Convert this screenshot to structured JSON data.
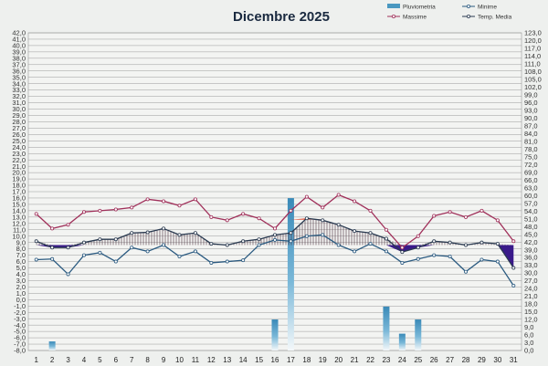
{
  "chart_data": {
    "type": "line",
    "title": "Dicembre 2025",
    "x": [
      "1",
      "2",
      "3",
      "4",
      "5",
      "6",
      "7",
      "8",
      "9",
      "10",
      "11",
      "12",
      "13",
      "14",
      "15",
      "16",
      "17",
      "18",
      "19",
      "20",
      "21",
      "22",
      "23",
      "24",
      "25",
      "26",
      "27",
      "28",
      "29",
      "30",
      "31"
    ],
    "y_left": {
      "ticks": [
        "42,0",
        "41,0",
        "40,0",
        "39,0",
        "38,0",
        "37,0",
        "36,0",
        "35,0",
        "34,0",
        "33,0",
        "32,0",
        "31,0",
        "30,0",
        "29,0",
        "28,0",
        "27,0",
        "26,0",
        "25,0",
        "24,0",
        "23,0",
        "22,0",
        "21,0",
        "20,0",
        "19,0",
        "18,0",
        "17,0",
        "16,0",
        "15,0",
        "14,0",
        "13,0",
        "12,0",
        "11,0",
        "10,0",
        "9,0",
        "8,0",
        "7,0",
        "6,0",
        "5,0",
        "4,0",
        "3,0",
        "2,0",
        "1,0",
        "0,0",
        "-1,0",
        "-2,0",
        "-3,0",
        "-4,0",
        "-5,0",
        "-6,0",
        "-7,0",
        "-8,0"
      ],
      "range": [
        -8,
        42
      ]
    },
    "y_right": {
      "ticks": [
        "123,0",
        "120,0",
        "117,0",
        "114,0",
        "111,0",
        "108,0",
        "105,0",
        "102,0",
        "99,0",
        "96,0",
        "93,0",
        "90,0",
        "87,0",
        "84,0",
        "81,0",
        "78,0",
        "75,0",
        "72,0",
        "69,0",
        "66,0",
        "63,0",
        "60,0",
        "57,0",
        "54,0",
        "51,0",
        "48,0",
        "45,0",
        "42,0",
        "39,0",
        "36,0",
        "33,0",
        "30,0",
        "27,0",
        "24,0",
        "21,0",
        "18,0",
        "15,0",
        "12,0",
        "9,0",
        "6,0",
        "3,0",
        "0,0"
      ],
      "range": [
        0,
        123
      ]
    },
    "series": [
      {
        "name": "Massime",
        "color": "#a0305a",
        "values": [
          13.5,
          11.2,
          11.8,
          13.8,
          14.0,
          14.2,
          14.5,
          15.8,
          15.5,
          14.8,
          15.8,
          13.0,
          12.5,
          13.5,
          12.8,
          11.2,
          14.0,
          16.2,
          14.5,
          16.5,
          15.5,
          14.0,
          11.0,
          8.2,
          10.0,
          13.2,
          13.8,
          13.0,
          14.0,
          12.5,
          9.2
        ]
      },
      {
        "name": "Minime",
        "color": "#2a5a80",
        "values": [
          6.3,
          6.4,
          4.0,
          7.0,
          7.4,
          6.0,
          8.2,
          7.6,
          8.6,
          6.8,
          7.6,
          5.8,
          6.0,
          6.2,
          8.6,
          9.4,
          9.2,
          10.0,
          10.2,
          8.6,
          7.6,
          8.8,
          7.6,
          5.8,
          6.4,
          7.0,
          6.8,
          4.4,
          6.3,
          6.0,
          2.2
        ]
      },
      {
        "name": "Temp. Media",
        "color": "#2a3a50",
        "values": [
          9.2,
          8.2,
          8.2,
          9.0,
          9.5,
          9.5,
          10.5,
          10.6,
          11.2,
          10.2,
          10.5,
          8.8,
          8.6,
          9.2,
          9.5,
          10.2,
          10.5,
          12.8,
          12.5,
          11.8,
          10.8,
          10.5,
          9.6,
          7.5,
          8.2,
          9.2,
          9.0,
          8.6,
          9.0,
          8.8,
          5.0
        ]
      },
      {
        "name": "Pluviometria",
        "color": "#4a98c0",
        "type": "bar",
        "axis": "right",
        "values": [
          0,
          3.5,
          0,
          0,
          0,
          0,
          0,
          0,
          0,
          0,
          0,
          0,
          0,
          0,
          0,
          12.0,
          59.0,
          0,
          0,
          0,
          0,
          0,
          17.0,
          6.5,
          12.0,
          0,
          0,
          0,
          0,
          0,
          0
        ]
      }
    ],
    "reference_band": {
      "upper": 12.6,
      "lower": 8.6
    },
    "legend": {
      "position": "top-right",
      "entries": [
        "Pluviometria",
        "Minime",
        "Massime",
        "Temp. Media"
      ]
    },
    "grid": true
  }
}
